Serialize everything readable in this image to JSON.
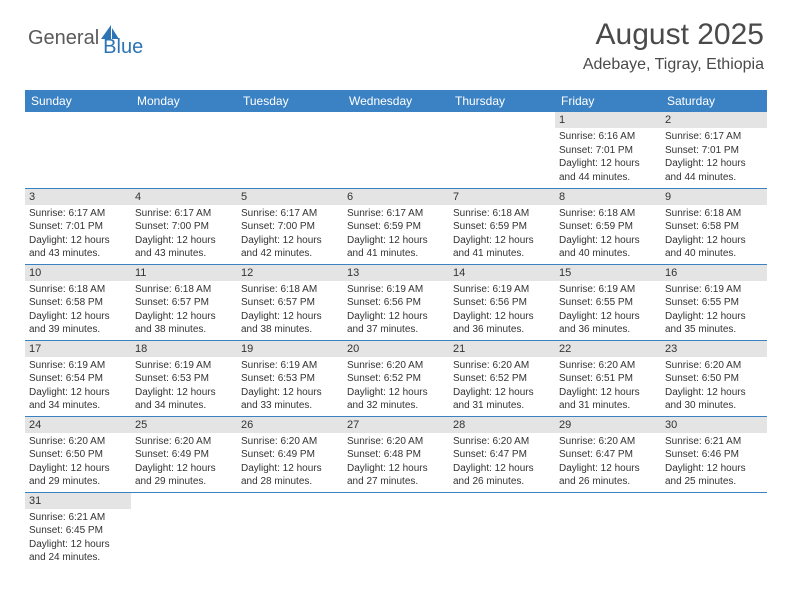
{
  "logo": {
    "text1": "General",
    "text2": "Blue"
  },
  "title": "August 2025",
  "location": "Adebaye, Tigray, Ethiopia",
  "columns": [
    "Sunday",
    "Monday",
    "Tuesday",
    "Wednesday",
    "Thursday",
    "Friday",
    "Saturday"
  ],
  "colors": {
    "header_bg": "#3b82c4",
    "header_text": "#ffffff",
    "daynum_bg": "#e4e4e4",
    "border": "#3b82c4",
    "logo_general": "#5a5a5a",
    "logo_blue": "#2d74b5",
    "body_text": "#333333"
  },
  "days": {
    "1": {
      "sunrise": "6:16 AM",
      "sunset": "7:01 PM",
      "daylight": "12 hours and 44 minutes."
    },
    "2": {
      "sunrise": "6:17 AM",
      "sunset": "7:01 PM",
      "daylight": "12 hours and 44 minutes."
    },
    "3": {
      "sunrise": "6:17 AM",
      "sunset": "7:01 PM",
      "daylight": "12 hours and 43 minutes."
    },
    "4": {
      "sunrise": "6:17 AM",
      "sunset": "7:00 PM",
      "daylight": "12 hours and 43 minutes."
    },
    "5": {
      "sunrise": "6:17 AM",
      "sunset": "7:00 PM",
      "daylight": "12 hours and 42 minutes."
    },
    "6": {
      "sunrise": "6:17 AM",
      "sunset": "6:59 PM",
      "daylight": "12 hours and 41 minutes."
    },
    "7": {
      "sunrise": "6:18 AM",
      "sunset": "6:59 PM",
      "daylight": "12 hours and 41 minutes."
    },
    "8": {
      "sunrise": "6:18 AM",
      "sunset": "6:59 PM",
      "daylight": "12 hours and 40 minutes."
    },
    "9": {
      "sunrise": "6:18 AM",
      "sunset": "6:58 PM",
      "daylight": "12 hours and 40 minutes."
    },
    "10": {
      "sunrise": "6:18 AM",
      "sunset": "6:58 PM",
      "daylight": "12 hours and 39 minutes."
    },
    "11": {
      "sunrise": "6:18 AM",
      "sunset": "6:57 PM",
      "daylight": "12 hours and 38 minutes."
    },
    "12": {
      "sunrise": "6:18 AM",
      "sunset": "6:57 PM",
      "daylight": "12 hours and 38 minutes."
    },
    "13": {
      "sunrise": "6:19 AM",
      "sunset": "6:56 PM",
      "daylight": "12 hours and 37 minutes."
    },
    "14": {
      "sunrise": "6:19 AM",
      "sunset": "6:56 PM",
      "daylight": "12 hours and 36 minutes."
    },
    "15": {
      "sunrise": "6:19 AM",
      "sunset": "6:55 PM",
      "daylight": "12 hours and 36 minutes."
    },
    "16": {
      "sunrise": "6:19 AM",
      "sunset": "6:55 PM",
      "daylight": "12 hours and 35 minutes."
    },
    "17": {
      "sunrise": "6:19 AM",
      "sunset": "6:54 PM",
      "daylight": "12 hours and 34 minutes."
    },
    "18": {
      "sunrise": "6:19 AM",
      "sunset": "6:53 PM",
      "daylight": "12 hours and 34 minutes."
    },
    "19": {
      "sunrise": "6:19 AM",
      "sunset": "6:53 PM",
      "daylight": "12 hours and 33 minutes."
    },
    "20": {
      "sunrise": "6:20 AM",
      "sunset": "6:52 PM",
      "daylight": "12 hours and 32 minutes."
    },
    "21": {
      "sunrise": "6:20 AM",
      "sunset": "6:52 PM",
      "daylight": "12 hours and 31 minutes."
    },
    "22": {
      "sunrise": "6:20 AM",
      "sunset": "6:51 PM",
      "daylight": "12 hours and 31 minutes."
    },
    "23": {
      "sunrise": "6:20 AM",
      "sunset": "6:50 PM",
      "daylight": "12 hours and 30 minutes."
    },
    "24": {
      "sunrise": "6:20 AM",
      "sunset": "6:50 PM",
      "daylight": "12 hours and 29 minutes."
    },
    "25": {
      "sunrise": "6:20 AM",
      "sunset": "6:49 PM",
      "daylight": "12 hours and 29 minutes."
    },
    "26": {
      "sunrise": "6:20 AM",
      "sunset": "6:49 PM",
      "daylight": "12 hours and 28 minutes."
    },
    "27": {
      "sunrise": "6:20 AM",
      "sunset": "6:48 PM",
      "daylight": "12 hours and 27 minutes."
    },
    "28": {
      "sunrise": "6:20 AM",
      "sunset": "6:47 PM",
      "daylight": "12 hours and 26 minutes."
    },
    "29": {
      "sunrise": "6:20 AM",
      "sunset": "6:47 PM",
      "daylight": "12 hours and 26 minutes."
    },
    "30": {
      "sunrise": "6:21 AM",
      "sunset": "6:46 PM",
      "daylight": "12 hours and 25 minutes."
    },
    "31": {
      "sunrise": "6:21 AM",
      "sunset": "6:45 PM",
      "daylight": "12 hours and 24 minutes."
    }
  },
  "labels": {
    "sunrise": "Sunrise:",
    "sunset": "Sunset:",
    "daylight": "Daylight:"
  },
  "grid": [
    [
      null,
      null,
      null,
      null,
      null,
      "1",
      "2"
    ],
    [
      "3",
      "4",
      "5",
      "6",
      "7",
      "8",
      "9"
    ],
    [
      "10",
      "11",
      "12",
      "13",
      "14",
      "15",
      "16"
    ],
    [
      "17",
      "18",
      "19",
      "20",
      "21",
      "22",
      "23"
    ],
    [
      "24",
      "25",
      "26",
      "27",
      "28",
      "29",
      "30"
    ],
    [
      "31",
      null,
      null,
      null,
      null,
      null,
      null
    ]
  ]
}
